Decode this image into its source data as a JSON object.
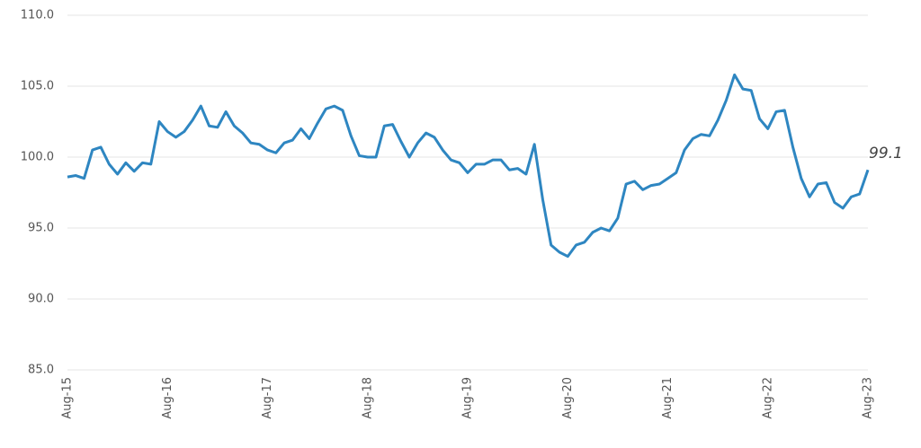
{
  "chart_data": {
    "type": "line",
    "categories": [
      "Aug-15",
      null,
      null,
      null,
      null,
      null,
      null,
      null,
      null,
      null,
      null,
      null,
      "Aug-16",
      null,
      null,
      null,
      null,
      null,
      null,
      null,
      null,
      null,
      null,
      null,
      "Aug-17",
      null,
      null,
      null,
      null,
      null,
      null,
      null,
      null,
      null,
      null,
      null,
      "Aug-18",
      null,
      null,
      null,
      null,
      null,
      null,
      null,
      null,
      null,
      null,
      null,
      "Aug-19",
      null,
      null,
      null,
      null,
      null,
      null,
      null,
      null,
      null,
      null,
      null,
      "Aug-20",
      null,
      null,
      null,
      null,
      null,
      null,
      null,
      null,
      null,
      null,
      null,
      "Aug-21",
      null,
      null,
      null,
      null,
      null,
      null,
      null,
      null,
      null,
      null,
      null,
      "Aug-22",
      null,
      null,
      null,
      null,
      null,
      null,
      null,
      null,
      null,
      null,
      null,
      "Aug-23"
    ],
    "values": [
      98.6,
      98.7,
      98.5,
      100.5,
      100.7,
      99.5,
      98.8,
      99.6,
      99.0,
      99.6,
      99.5,
      102.5,
      101.8,
      101.4,
      101.8,
      102.6,
      103.6,
      102.2,
      102.1,
      103.2,
      102.2,
      101.7,
      101.0,
      100.9,
      100.5,
      100.3,
      101.0,
      101.2,
      102.0,
      101.3,
      102.4,
      103.4,
      103.6,
      103.3,
      101.5,
      100.1,
      100.0,
      100.0,
      102.2,
      102.3,
      101.1,
      100.0,
      101.0,
      101.7,
      101.4,
      100.5,
      99.8,
      99.6,
      98.9,
      99.5,
      99.5,
      99.8,
      99.8,
      99.1,
      99.2,
      98.8,
      100.9,
      97.0,
      93.8,
      93.3,
      93.0,
      93.8,
      94.0,
      94.7,
      95.0,
      94.8,
      95.7,
      98.1,
      98.3,
      97.7,
      98.0,
      98.1,
      98.5,
      98.9,
      100.5,
      101.3,
      101.6,
      101.5,
      102.6,
      104.0,
      105.8,
      104.8,
      104.7,
      102.7,
      102.0,
      103.2,
      103.3,
      100.7,
      98.5,
      97.2,
      98.1,
      98.2,
      96.8,
      96.4,
      97.2,
      97.4,
      99.1
    ],
    "color": "#2e86c1",
    "ylim": [
      85,
      110
    ],
    "yticks": [
      {
        "value": 85,
        "label": "85.0"
      },
      {
        "value": 90,
        "label": "90.0"
      },
      {
        "value": 95,
        "label": "95.0"
      },
      {
        "value": 100,
        "label": "100.0"
      },
      {
        "value": 105,
        "label": "105.0"
      },
      {
        "value": 110,
        "label": "110.0"
      }
    ],
    "grid": true
  }
}
